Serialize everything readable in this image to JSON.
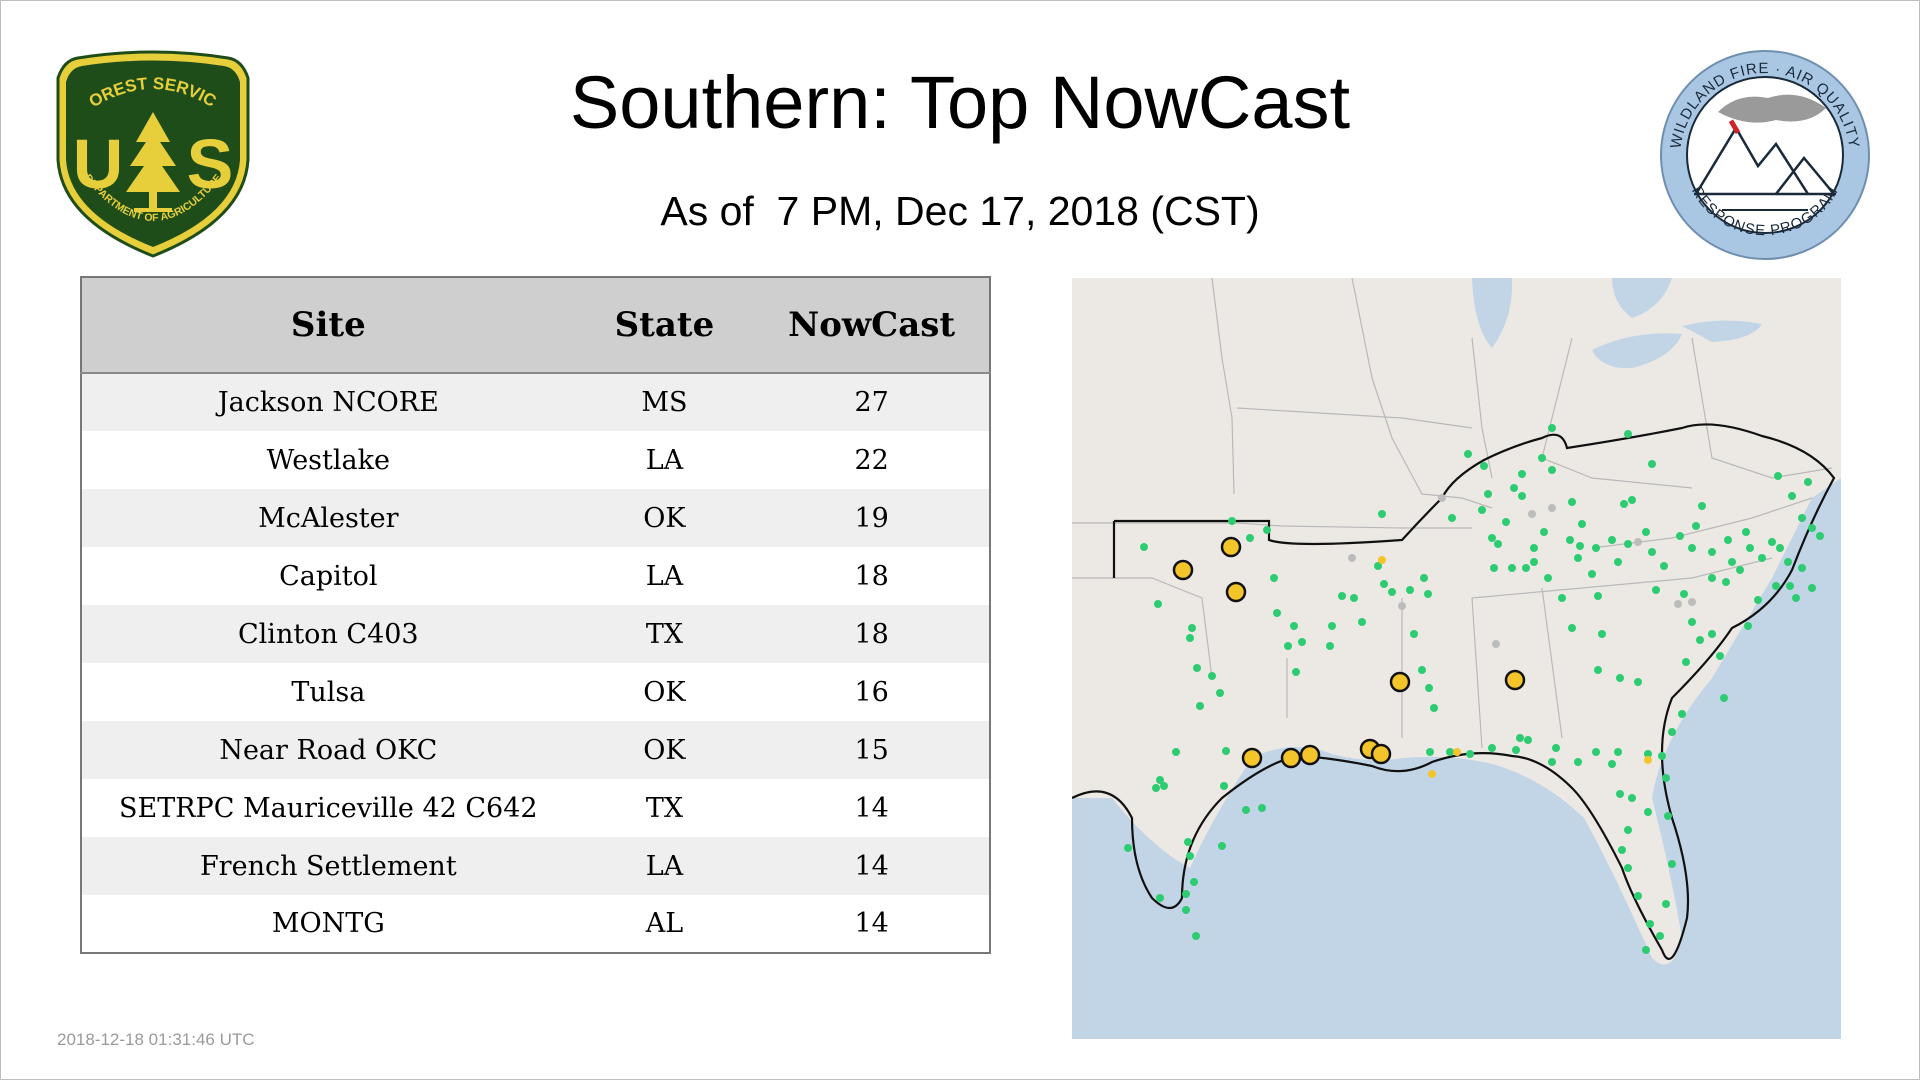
{
  "title": "Southern: Top NowCast",
  "subtitle": "As of  7 PM, Dec 17, 2018 (CST)",
  "timestamp": "2018-12-18 01:31:46 UTC",
  "logos": {
    "forest_service": {
      "icon": "forest-service-shield-icon",
      "top_text": "FOREST SERVICE",
      "letters": "U S",
      "bottom_text": "DEPARTMENT OF AGRICULTURE",
      "colors": {
        "green": "#1f4d1a",
        "yellow": "#e7cf3c"
      }
    },
    "wildland_fire": {
      "icon": "wildland-fire-air-quality-seal-icon",
      "top_text": "WILDLAND FIRE · AIR QUALITY",
      "bottom_text": "RESPONSE PROGRAM",
      "colors": {
        "ring": "#a9c6e3",
        "ink": "#1a2a3a"
      }
    }
  },
  "table": {
    "headers": {
      "site": "Site",
      "state": "State",
      "nowcast": "NowCast"
    },
    "rows": [
      {
        "site": "Jackson NCORE",
        "state": "MS",
        "nowcast": "27"
      },
      {
        "site": "Westlake",
        "state": "LA",
        "nowcast": "22"
      },
      {
        "site": "McAlester",
        "state": "OK",
        "nowcast": "19"
      },
      {
        "site": "Capitol",
        "state": "LA",
        "nowcast": "18"
      },
      {
        "site": "Clinton C403",
        "state": "TX",
        "nowcast": "18"
      },
      {
        "site": "Tulsa",
        "state": "OK",
        "nowcast": "16"
      },
      {
        "site": "Near Road OKC",
        "state": "OK",
        "nowcast": "15"
      },
      {
        "site": "SETRPC Mauriceville 42 C642",
        "state": "TX",
        "nowcast": "14"
      },
      {
        "site": "French Settlement",
        "state": "LA",
        "nowcast": "14"
      },
      {
        "site": "MONTG",
        "state": "AL",
        "nowcast": "14"
      }
    ]
  },
  "map": {
    "icon": "southern-region-monitor-map",
    "colors": {
      "land": "#ece9e5",
      "water": "#c2d5e6",
      "state_lines": "#b9b9b9",
      "region_outline": "#111111",
      "moderate_marker": "#f4c52a",
      "good_marker": "#2ecc71",
      "no_data_marker": "#bcbcbc"
    }
  }
}
